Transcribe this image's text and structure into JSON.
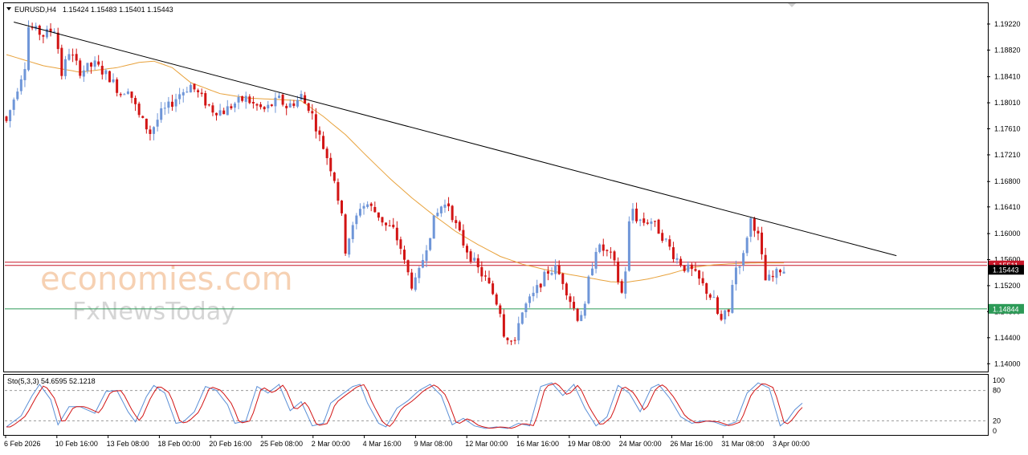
{
  "header": {
    "symbol": "EURUSD,H4",
    "ohlc": "1.15424 1.15483 1.15401 1.15443"
  },
  "watermark": {
    "line1": "economies.com",
    "line2": "FxNewsToday"
  },
  "colors": {
    "bull": "#6f96d8",
    "bear": "#d21414",
    "ma": "#e8a23c",
    "trendline": "#000000",
    "resistance": "#c8182a",
    "support": "#2c9a57",
    "stoch_main": "#5b8fd6",
    "stoch_signal": "#d21414"
  },
  "price_axis": {
    "ticks": [
      "1.19220",
      "1.18820",
      "1.18410",
      "1.18010",
      "1.17610",
      "1.17210",
      "1.16800",
      "1.16410",
      "1.16000",
      "1.15600",
      "1.15200",
      "1.14800",
      "1.14400",
      "1.14000"
    ],
    "badges": [
      {
        "text": "1.15511",
        "color": "#c8182a"
      },
      {
        "text": "1.15443",
        "color": "#000000"
      },
      {
        "text": "1.14844",
        "color": "#2c9a57"
      }
    ]
  },
  "stoch": {
    "label": "Sto(5,3,3) 54.6595 52.1218",
    "ticks": [
      "100",
      "80",
      "20",
      "0"
    ]
  },
  "time_axis": [
    "6 Feb 2026",
    "10 Feb 16:00",
    "13 Feb 08:00",
    "18 Feb 00:00",
    "20 Feb 16:00",
    "25 Feb 08:00",
    "2 Mar 00:00",
    "4 Mar 16:00",
    "9 Mar 08:00",
    "12 Mar 00:00",
    "16 Mar 16:00",
    "19 Mar 08:00",
    "24 Mar 00:00",
    "26 Mar 16:00",
    "31 Mar 08:00",
    "3 Apr 00:00"
  ],
  "chart_data": {
    "type": "candlestick",
    "symbol": "EURUSD",
    "timeframe": "H4",
    "ylim": [
      1.1388,
      1.1954
    ],
    "levels": [
      {
        "price": 1.15511,
        "color": "#c8182a"
      },
      {
        "price": 1.1556,
        "color": "#c8182a"
      },
      {
        "price": 1.14844,
        "color": "#2c9a57"
      }
    ],
    "trendline": {
      "start": {
        "index": 2,
        "price": 1.1925
      },
      "end": {
        "index": 133,
        "price": 1.1566
      }
    },
    "close_path": [
      [
        0,
        1.1772
      ],
      [
        3,
        1.1825
      ],
      [
        5,
        1.186
      ],
      [
        6,
        1.1918
      ],
      [
        10,
        1.1905
      ],
      [
        13,
        1.1915
      ],
      [
        14,
        1.1885
      ],
      [
        15,
        1.1845
      ],
      [
        17,
        1.188
      ],
      [
        20,
        1.185
      ],
      [
        24,
        1.186
      ],
      [
        28,
        1.184
      ],
      [
        31,
        1.1815
      ],
      [
        33,
        1.1825
      ],
      [
        36,
        1.178
      ],
      [
        39,
        1.1755
      ],
      [
        42,
        1.1785
      ],
      [
        44,
        1.1795
      ],
      [
        47,
        1.1815
      ],
      [
        50,
        1.1828
      ],
      [
        53,
        1.1808
      ],
      [
        56,
        1.179
      ],
      [
        59,
        1.1788
      ],
      [
        62,
        1.18
      ],
      [
        65,
        1.1808
      ],
      [
        67,
        1.1798
      ],
      [
        70,
        1.179
      ],
      [
        74,
        1.1806
      ],
      [
        76,
        1.1795
      ],
      [
        79,
        1.1805
      ],
      [
        80,
        1.1812
      ],
      [
        81,
        1.18
      ],
      [
        82,
        1.1795
      ],
      [
        83,
        1.1782
      ],
      [
        85,
        1.1748
      ],
      [
        87,
        1.1718
      ],
      [
        89,
        1.1685
      ],
      [
        91,
        1.1624
      ],
      [
        92,
        1.1575
      ],
      [
        93,
        1.1595
      ],
      [
        94,
        1.1608
      ],
      [
        96,
        1.1642
      ],
      [
        98,
        1.1645
      ],
      [
        101,
        1.1628
      ],
      [
        103,
        1.1612
      ],
      [
        105,
        1.1605
      ],
      [
        107,
        1.1578
      ],
      [
        108,
        1.1555
      ],
      [
        110,
        1.1522
      ],
      [
        111,
        1.1525
      ],
      [
        112,
        1.154
      ],
      [
        114,
        1.1582
      ],
      [
        116,
        1.162
      ],
      [
        118,
        1.1642
      ],
      [
        120,
        1.1645
      ],
      [
        122,
        1.1612
      ],
      [
        124,
        1.1585
      ],
      [
        127,
        1.1555
      ],
      [
        128,
        1.1545
      ],
      [
        130,
        1.153
      ],
      [
        132,
        1.1508
      ],
      [
        134,
        1.1482
      ],
      [
        135,
        1.1448
      ],
      [
        137,
        1.1435
      ],
      [
        138,
        1.1428
      ],
      [
        139,
        1.1468
      ],
      [
        141,
        1.149
      ],
      [
        143,
        1.1505
      ],
      [
        145,
        1.1525
      ],
      [
        147,
        1.1542
      ],
      [
        149,
        1.1546
      ],
      [
        151,
        1.1528
      ],
      [
        153,
        1.1498
      ],
      [
        155,
        1.1472
      ],
      [
        157,
        1.1485
      ],
      [
        158,
        1.1528
      ],
      [
        160,
        1.1578
      ],
      [
        162,
        1.1575
      ],
      [
        164,
        1.1565
      ],
      [
        165,
        1.1552
      ],
      [
        166,
        1.1528
      ],
      [
        167,
        1.1508
      ],
      [
        168,
        1.1545
      ],
      [
        169,
        1.1615
      ],
      [
        170,
        1.1638
      ],
      [
        171,
        1.1624
      ],
      [
        173,
        1.1618
      ],
      [
        175,
        1.162
      ],
      [
        177,
        1.1605
      ],
      [
        179,
        1.1588
      ],
      [
        181,
        1.1568
      ],
      [
        183,
        1.1555
      ],
      [
        184,
        1.1548
      ],
      [
        186,
        1.1542
      ],
      [
        188,
        1.1528
      ],
      [
        190,
        1.1512
      ],
      [
        192,
        1.1496
      ],
      [
        193,
        1.1476
      ],
      [
        194,
        1.1465
      ],
      [
        195,
        1.1475
      ],
      [
        196,
        1.1478
      ],
      [
        197,
        1.1525
      ],
      [
        198,
        1.1548
      ],
      [
        200,
        1.1565
      ],
      [
        201,
        1.1598
      ],
      [
        202,
        1.1622
      ],
      [
        203,
        1.1612
      ],
      [
        204,
        1.1595
      ],
      [
        205,
        1.1562
      ],
      [
        206,
        1.1528
      ],
      [
        208,
        1.1532
      ],
      [
        210,
        1.1545
      ],
      [
        211,
        1.1544
      ]
    ],
    "ma_path": [
      [
        0,
        1.1875
      ],
      [
        10,
        1.1858
      ],
      [
        20,
        1.1848
      ],
      [
        30,
        1.1855
      ],
      [
        36,
        1.1863
      ],
      [
        40,
        1.1865
      ],
      [
        45,
        1.1855
      ],
      [
        50,
        1.1832
      ],
      [
        58,
        1.1815
      ],
      [
        66,
        1.1808
      ],
      [
        74,
        1.1806
      ],
      [
        80,
        1.1804
      ],
      [
        86,
        1.178
      ],
      [
        92,
        1.1752
      ],
      [
        98,
        1.1718
      ],
      [
        104,
        1.1685
      ],
      [
        110,
        1.1655
      ],
      [
        116,
        1.1628
      ],
      [
        122,
        1.1603
      ],
      [
        128,
        1.1583
      ],
      [
        134,
        1.1565
      ],
      [
        140,
        1.1553
      ],
      [
        146,
        1.1545
      ],
      [
        152,
        1.1538
      ],
      [
        158,
        1.1532
      ],
      [
        164,
        1.1526
      ],
      [
        168,
        1.1525
      ],
      [
        174,
        1.153
      ],
      [
        180,
        1.1538
      ],
      [
        186,
        1.1548
      ],
      [
        192,
        1.1552
      ],
      [
        198,
        1.1554
      ],
      [
        204,
        1.1555
      ],
      [
        211,
        1.1555
      ]
    ],
    "stochastic": {
      "k_period": 5,
      "d_period": 3,
      "slowing": 3,
      "main": 54.6595,
      "signal": 52.1218,
      "levels": [
        20,
        80
      ],
      "ylim": [
        0,
        100
      ],
      "main_path": [
        [
          0,
          8
        ],
        [
          4,
          30
        ],
        [
          7,
          70
        ],
        [
          9,
          92
        ],
        [
          12,
          62
        ],
        [
          14,
          12
        ],
        [
          17,
          48
        ],
        [
          20,
          48
        ],
        [
          24,
          35
        ],
        [
          27,
          78
        ],
        [
          30,
          80
        ],
        [
          33,
          38
        ],
        [
          35,
          18
        ],
        [
          38,
          68
        ],
        [
          40,
          90
        ],
        [
          43,
          75
        ],
        [
          46,
          15
        ],
        [
          48,
          18
        ],
        [
          51,
          38
        ],
        [
          54,
          88
        ],
        [
          57,
          80
        ],
        [
          60,
          52
        ],
        [
          62,
          15
        ],
        [
          65,
          20
        ],
        [
          68,
          88
        ],
        [
          71,
          75
        ],
        [
          74,
          92
        ],
        [
          77,
          40
        ],
        [
          80,
          58
        ],
        [
          83,
          10
        ],
        [
          86,
          15
        ],
        [
          88,
          55
        ],
        [
          91,
          72
        ],
        [
          94,
          88
        ],
        [
          96,
          92
        ],
        [
          98,
          55
        ],
        [
          101,
          15
        ],
        [
          103,
          8
        ],
        [
          106,
          45
        ],
        [
          109,
          60
        ],
        [
          112,
          80
        ],
        [
          115,
          92
        ],
        [
          118,
          70
        ],
        [
          121,
          12
        ],
        [
          124,
          25
        ],
        [
          127,
          10
        ],
        [
          130,
          5
        ],
        [
          133,
          8
        ],
        [
          136,
          5
        ],
        [
          139,
          15
        ],
        [
          142,
          10
        ],
        [
          145,
          88
        ],
        [
          148,
          95
        ],
        [
          151,
          70
        ],
        [
          154,
          92
        ],
        [
          157,
          45
        ],
        [
          160,
          10
        ],
        [
          163,
          28
        ],
        [
          166,
          90
        ],
        [
          169,
          75
        ],
        [
          172,
          38
        ],
        [
          175,
          85
        ],
        [
          177,
          92
        ],
        [
          180,
          65
        ],
        [
          183,
          28
        ],
        [
          186,
          15
        ],
        [
          189,
          20
        ],
        [
          192,
          18
        ],
        [
          195,
          10
        ],
        [
          198,
          18
        ],
        [
          201,
          75
        ],
        [
          204,
          95
        ],
        [
          207,
          85
        ],
        [
          210,
          10
        ],
        [
          212,
          22
        ],
        [
          214,
          42
        ],
        [
          216,
          55
        ]
      ]
    }
  }
}
